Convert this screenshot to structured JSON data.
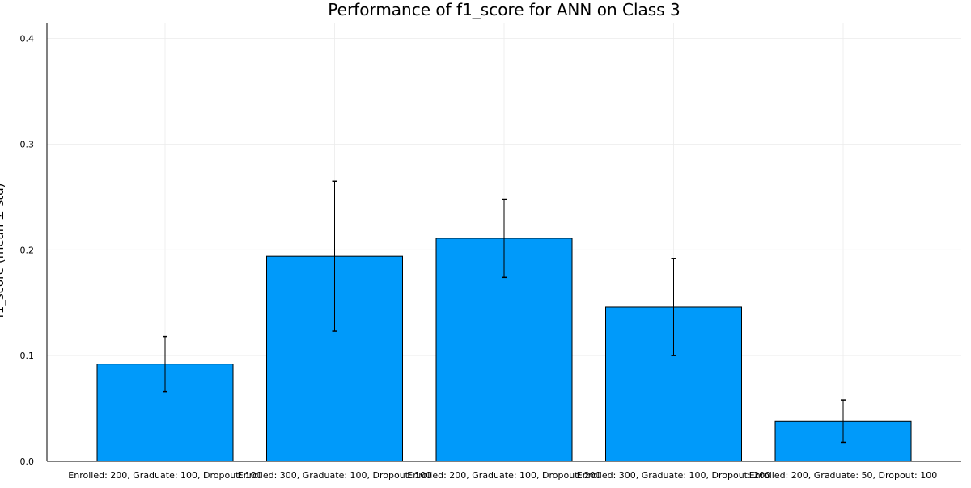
{
  "chart_data": {
    "type": "bar",
    "title": "Performance of f1_score for ANN on Class 3",
    "xlabel": "",
    "ylabel": "f1_score (mean ± std)",
    "categories": [
      "Enrolled: 200, Graduate: 100, Dropout: 100",
      "Enrolled: 300, Graduate: 100, Dropout: 100",
      "Enrolled: 200, Graduate: 100, Dropout: 200",
      "Enrolled: 300, Graduate: 100, Dropout: 200",
      "Enrolled: 200, Graduate: 50, Dropout: 100"
    ],
    "values": [
      0.092,
      0.194,
      0.211,
      0.146,
      0.038
    ],
    "errors": [
      0.026,
      0.071,
      0.037,
      0.046,
      0.02
    ],
    "ylim": [
      0,
      0.415
    ],
    "yticks": [
      0.0,
      0.1,
      0.2,
      0.3,
      0.4
    ],
    "ytick_labels": [
      "0.0",
      "0.1",
      "0.2",
      "0.3",
      "0.4"
    ],
    "grid": true,
    "legend": "none",
    "colors": {
      "bar": "#009AFA",
      "bar_stroke": "#000000",
      "error_bar": "#000000",
      "grid": "#EBEBEB",
      "axis": "#000000"
    }
  }
}
